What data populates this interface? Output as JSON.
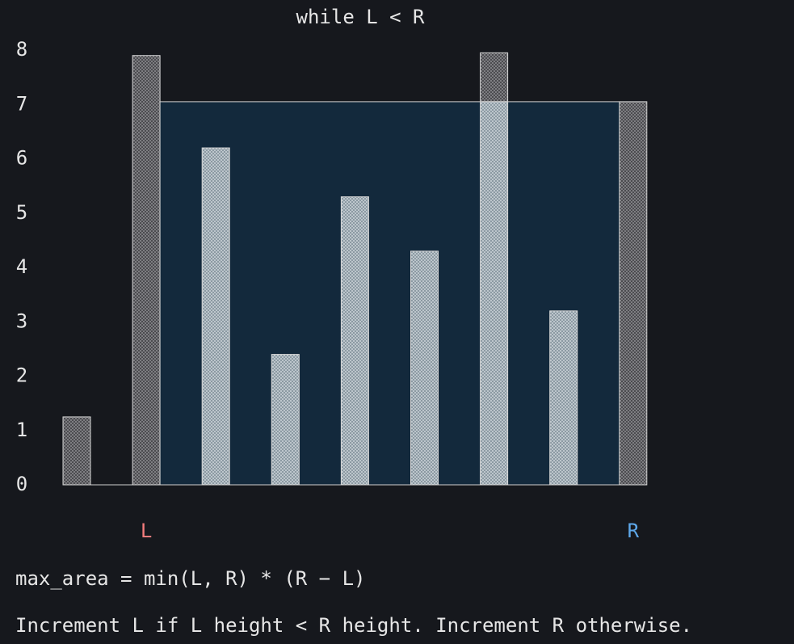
{
  "chart_data": {
    "type": "bar",
    "title": "while L < R",
    "values": [
      1.25,
      7.9,
      6.2,
      2.4,
      5.3,
      4.3,
      7.95,
      3.2,
      7.05
    ],
    "ylim": [
      0,
      8
    ],
    "yticks": [
      0,
      1,
      2,
      3,
      4,
      5,
      6,
      7,
      8
    ],
    "pointers": [
      {
        "label": "L",
        "index": 1,
        "color": "#f47c7c"
      },
      {
        "label": "R",
        "index": 8,
        "color": "#5ea8ea"
      }
    ],
    "annotations": [
      "max_area = min(L, R) * (R − L)",
      "Increment L if L height < R height. Increment R otherwise."
    ]
  }
}
